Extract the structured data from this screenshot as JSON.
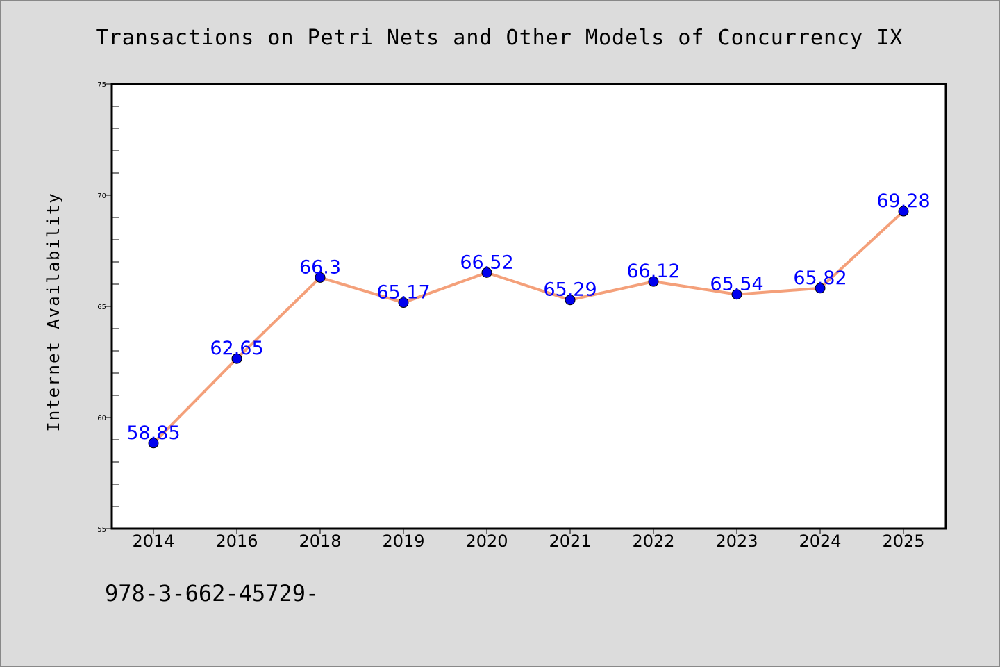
{
  "chart_data": {
    "type": "line",
    "title": "Transactions on Petri Nets and Other Models of Concurrency IX",
    "ylabel": "Internet Availability",
    "xlabel": "",
    "footer_text": "978-3-662-45729-",
    "categories": [
      "2014",
      "2016",
      "2018",
      "2019",
      "2020",
      "2021",
      "2022",
      "2023",
      "2024",
      "2025"
    ],
    "series": [
      {
        "values": [
          58.85,
          62.65,
          66.3,
          65.17,
          66.52,
          65.29,
          66.12,
          65.54,
          65.82,
          69.28
        ],
        "data_labels": [
          "58.85",
          "62.65",
          "66.3",
          "65.17",
          "66.52",
          "65.29",
          "66.12",
          "65.54",
          "65.82",
          "69.28"
        ],
        "line_color": "#f4a07a",
        "marker_color": "#0000ee",
        "label_color": "#0000ff"
      }
    ],
    "ylim": [
      55,
      75
    ],
    "yticks": [
      "55",
      "60",
      "65",
      "70",
      "75"
    ],
    "grid": false,
    "legend": "none"
  }
}
